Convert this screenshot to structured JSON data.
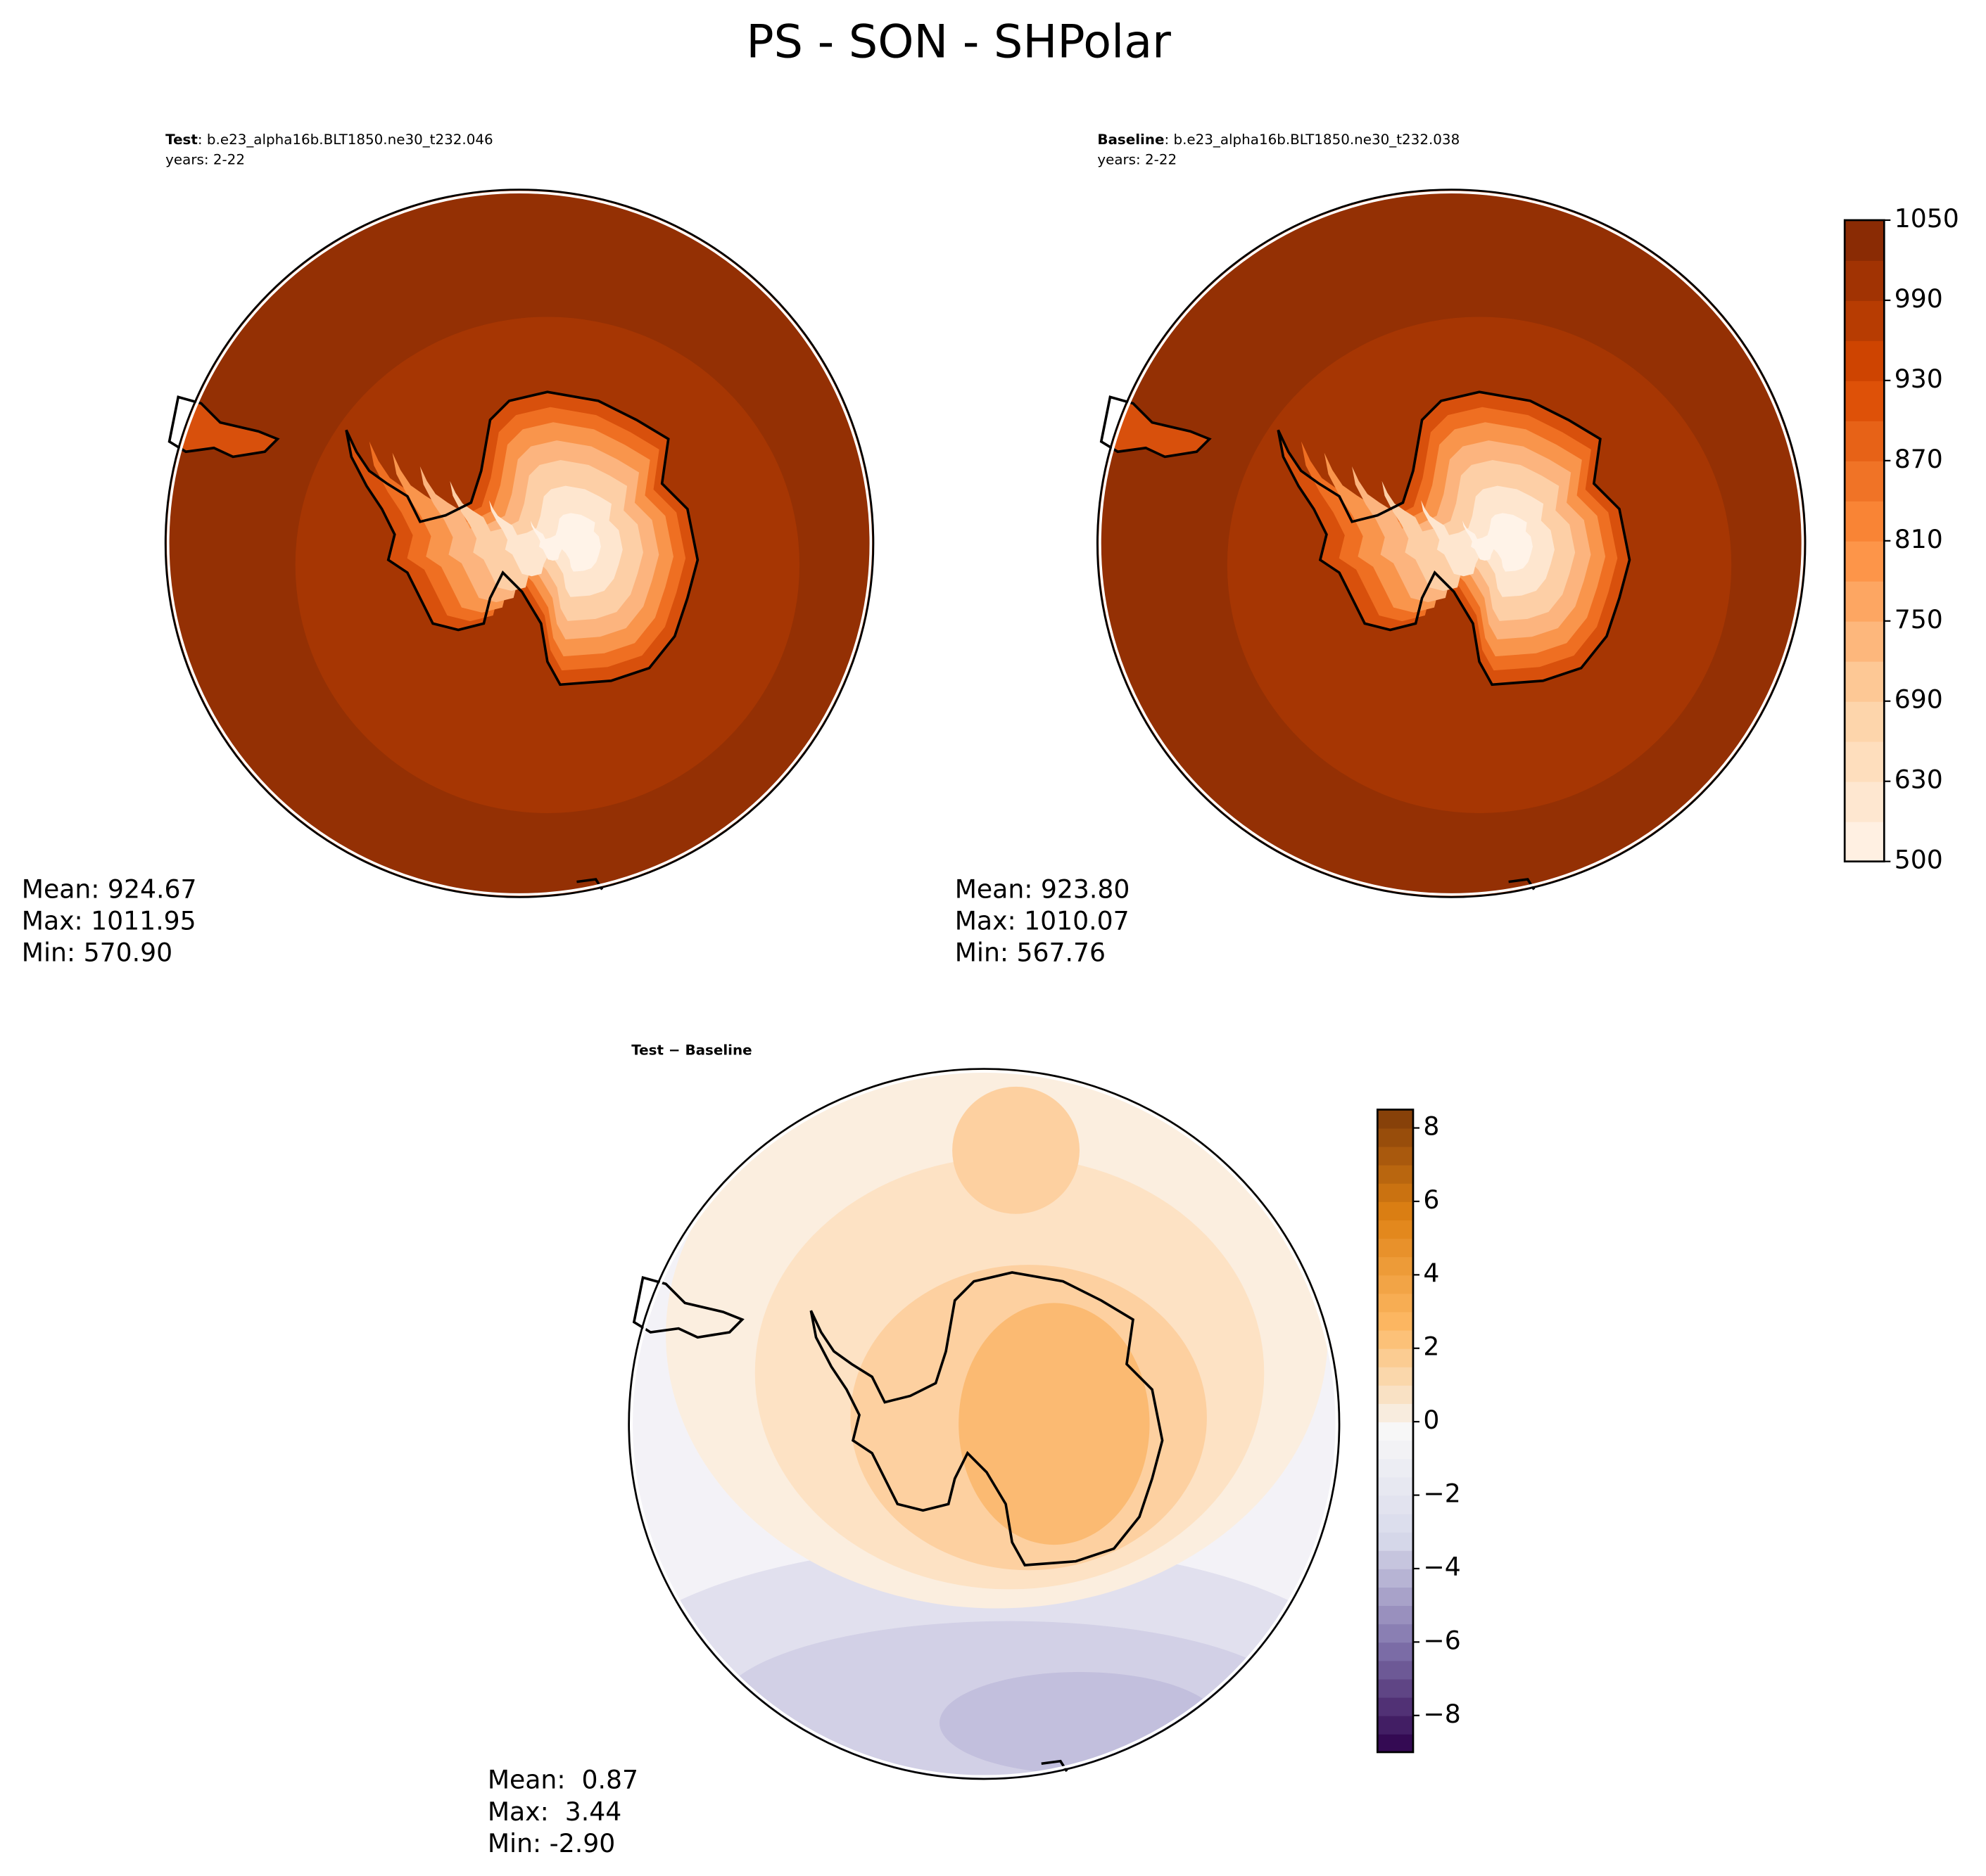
{
  "title": "PS - SON - SHPolar",
  "chart_data": [
    {
      "type": "map",
      "label": "Test",
      "case": ": b.e23_alpha16b.BLT1850.ne30_t232.046",
      "years": "years: 2-22",
      "stats": [
        "Mean: 924.67",
        "Max: 1011.95",
        "Min: 570.90"
      ]
    },
    {
      "type": "map",
      "label": "Baseline",
      "case": ": b.e23_alpha16b.BLT1850.ne30_t232.038",
      "years": "years: 2-22",
      "stats": [
        "Mean: 923.80",
        "Max: 1010.07",
        "Min: 567.76"
      ],
      "colorbar": {
        "ylim": [
          500,
          1050
        ],
        "yticks": [
          500,
          630,
          690,
          750,
          810,
          870,
          930,
          990,
          1050
        ],
        "levels": [
          500,
          600,
          630,
          660,
          690,
          720,
          750,
          780,
          810,
          840,
          870,
          900,
          930,
          960,
          990,
          1020,
          1050
        ],
        "colormap": [
          "#fff5eb",
          "#fdd0a2",
          "#fd8d3c",
          "#d94801",
          "#7f2704"
        ]
      }
    },
    {
      "type": "map",
      "title": "Test − Baseline",
      "stats": [
        "Mean:  0.87",
        "Max:  3.44",
        "Min: -2.90"
      ],
      "colorbar": {
        "ylim": [
          -9,
          8.5
        ],
        "yticks": [
          {
            "value": -8,
            "label": "−8"
          },
          {
            "value": -6,
            "label": "−6"
          },
          {
            "value": -4,
            "label": "−4"
          },
          {
            "value": -2,
            "label": "−2"
          },
          0,
          2,
          4,
          6,
          8
        ],
        "colormap": [
          "#2d004b",
          "#8073ac",
          "#d8daeb",
          "#f7f7f7",
          "#fdb863",
          "#e08214",
          "#7f3b08"
        ]
      }
    }
  ]
}
